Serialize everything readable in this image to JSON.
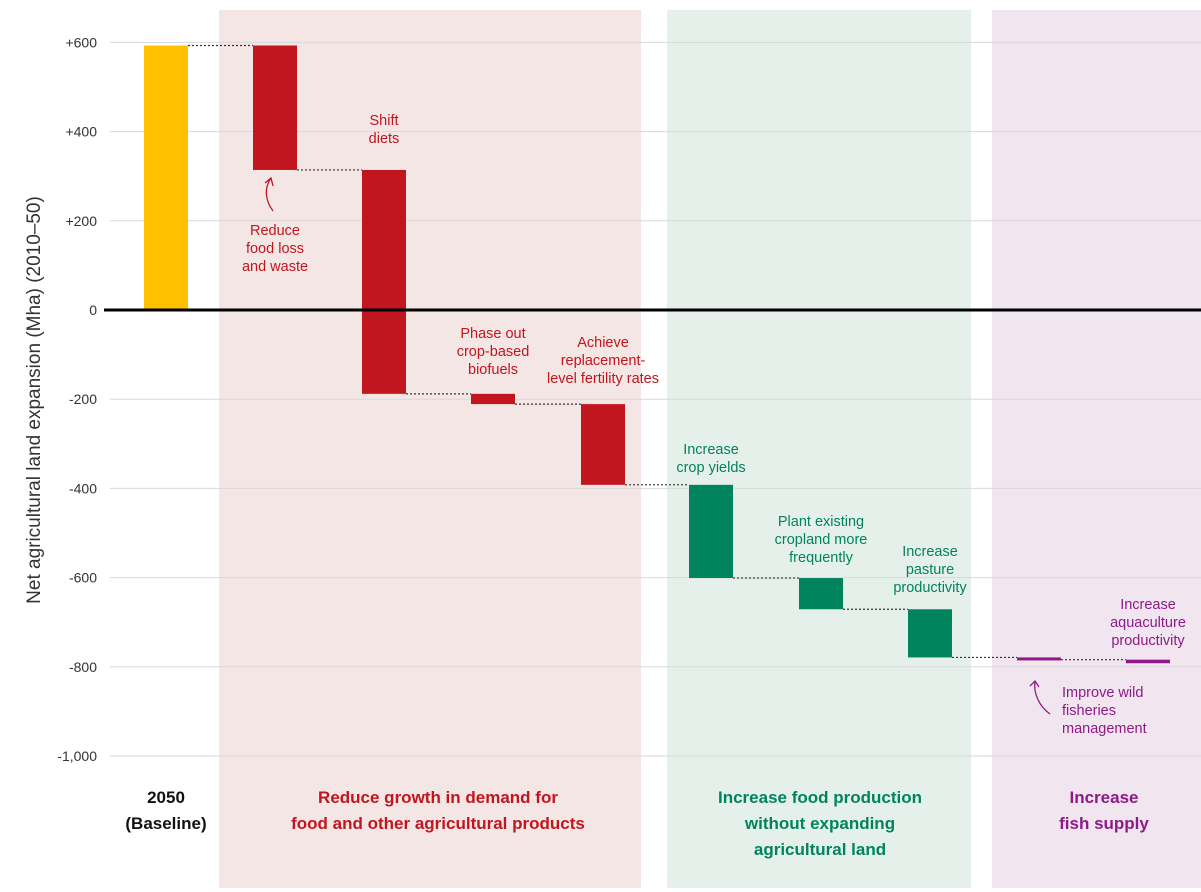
{
  "chart_data": {
    "type": "bar",
    "ylabel": "Net agricultural land expansion (Mha) (2010–50)",
    "ylim": [
      -1000,
      600
    ],
    "grid": true,
    "y_tick_labels": [
      "+600",
      "+400",
      "+200",
      "0",
      "-200",
      "-400",
      "-600",
      "-800",
      "-1,000"
    ],
    "y_tick_values": [
      600,
      400,
      200,
      0,
      -200,
      -400,
      -600,
      -800,
      -1000
    ],
    "colors": {
      "baseline": "#FFC000",
      "demand": "#C1161E",
      "production": "#00845E",
      "fish": "#8E1A87",
      "demand_band": "#F5E6E6",
      "production_band": "#E6F0EB",
      "fish_band": "#F1E6EF",
      "grid": "#D9D9D9",
      "zero_line": "#000000",
      "baseline_text": "#111111"
    },
    "groups": [
      {
        "id": "baseline",
        "label": [
          "2050",
          "(Baseline)"
        ]
      },
      {
        "id": "demand",
        "label": [
          "Reduce growth in demand for",
          "food and other agricultural products"
        ]
      },
      {
        "id": "production",
        "label": [
          "Increase food production",
          "without expanding",
          "agricultural land"
        ]
      },
      {
        "id": "fish",
        "label": [
          "Increase",
          "fish supply"
        ]
      }
    ],
    "bars": [
      {
        "name": "2050 (Baseline)",
        "group": "baseline",
        "start": 0,
        "end": 593,
        "label": []
      },
      {
        "name": "Reduce food loss and waste",
        "group": "demand",
        "start": 593,
        "end": 314,
        "label": [
          "Reduce",
          "food loss",
          "and waste"
        ]
      },
      {
        "name": "Shift diets",
        "group": "demand",
        "start": 314,
        "end": -188,
        "label": [
          "Shift",
          "diets"
        ]
      },
      {
        "name": "Phase out crop-based biofuels",
        "group": "demand",
        "start": -188,
        "end": -211,
        "label": [
          "Phase out",
          "crop-based",
          "biofuels"
        ]
      },
      {
        "name": "Achieve replacement-level fertility rates",
        "group": "demand",
        "start": -211,
        "end": -392,
        "label": [
          "Achieve",
          "replacement-",
          "level fertility rates"
        ]
      },
      {
        "name": "Increase crop yields",
        "group": "production",
        "start": -392,
        "end": -601,
        "label": [
          "Increase",
          "crop yields"
        ]
      },
      {
        "name": "Plant existing cropland more frequently",
        "group": "production",
        "start": -601,
        "end": -671,
        "label": [
          "Plant existing",
          "cropland more",
          "frequently"
        ]
      },
      {
        "name": "Increase pasture productivity",
        "group": "production",
        "start": -671,
        "end": -779,
        "label": [
          "Increase",
          "pasture",
          "productivity"
        ]
      },
      {
        "name": "Improve wild fisheries management",
        "group": "fish",
        "start": -779,
        "end": -784,
        "label": [
          "Improve wild",
          "fisheries",
          "management"
        ]
      },
      {
        "name": "Increase aquaculture productivity",
        "group": "fish",
        "start": -784,
        "end": -792,
        "label": [
          "Increase",
          "aquaculture",
          "productivity"
        ]
      }
    ]
  }
}
